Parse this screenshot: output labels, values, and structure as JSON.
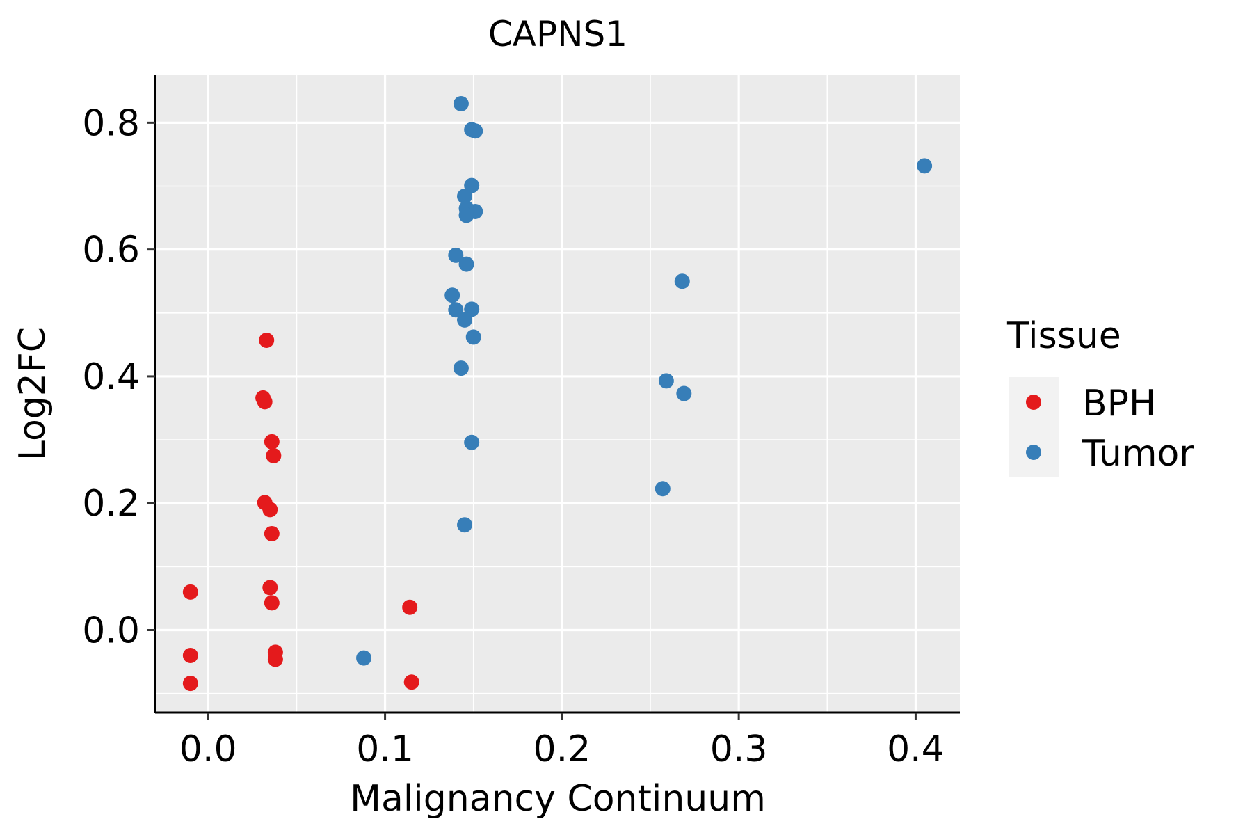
{
  "chart_data": {
    "type": "scatter",
    "title": "CAPNS1",
    "xlabel": "Malignancy Continuum",
    "ylabel": "Log2FC",
    "xlim": [
      -0.03,
      0.425
    ],
    "ylim": [
      -0.13,
      0.875
    ],
    "x_ticks": [
      0.0,
      0.1,
      0.2,
      0.3,
      0.4
    ],
    "x_tick_labels": [
      "0.0",
      "0.1",
      "0.2",
      "0.3",
      "0.4"
    ],
    "y_ticks": [
      0.0,
      0.2,
      0.4,
      0.6,
      0.8
    ],
    "y_tick_labels": [
      "0.0",
      "0.2",
      "0.4",
      "0.6",
      "0.8"
    ],
    "grid": true,
    "legend": {
      "title": "Tissue",
      "position": "right",
      "entries": [
        "BPH",
        "Tumor"
      ]
    },
    "series": [
      {
        "name": "BPH",
        "color": "#E41A1C",
        "points": [
          [
            0.033,
            0.457
          ],
          [
            0.031,
            0.366
          ],
          [
            0.032,
            0.36
          ],
          [
            0.036,
            0.297
          ],
          [
            0.037,
            0.275
          ],
          [
            0.032,
            0.201
          ],
          [
            0.035,
            0.19
          ],
          [
            0.036,
            0.152
          ],
          [
            0.035,
            0.067
          ],
          [
            0.036,
            0.043
          ],
          [
            0.038,
            -0.035
          ],
          [
            0.038,
            -0.046
          ],
          [
            -0.01,
            0.06
          ],
          [
            -0.01,
            -0.04
          ],
          [
            -0.01,
            -0.084
          ],
          [
            0.114,
            0.036
          ],
          [
            0.115,
            -0.082
          ]
        ]
      },
      {
        "name": "Tumor",
        "color": "#377EB8",
        "points": [
          [
            0.143,
            0.83
          ],
          [
            0.149,
            0.789
          ],
          [
            0.151,
            0.787
          ],
          [
            0.149,
            0.701
          ],
          [
            0.145,
            0.684
          ],
          [
            0.146,
            0.665
          ],
          [
            0.151,
            0.66
          ],
          [
            0.146,
            0.654
          ],
          [
            0.14,
            0.591
          ],
          [
            0.146,
            0.577
          ],
          [
            0.138,
            0.528
          ],
          [
            0.14,
            0.505
          ],
          [
            0.149,
            0.506
          ],
          [
            0.145,
            0.489
          ],
          [
            0.15,
            0.462
          ],
          [
            0.143,
            0.413
          ],
          [
            0.149,
            0.296
          ],
          [
            0.145,
            0.166
          ],
          [
            0.088,
            -0.044
          ],
          [
            0.268,
            0.55
          ],
          [
            0.259,
            0.393
          ],
          [
            0.269,
            0.373
          ],
          [
            0.257,
            0.223
          ],
          [
            0.405,
            0.732
          ]
        ]
      }
    ]
  }
}
